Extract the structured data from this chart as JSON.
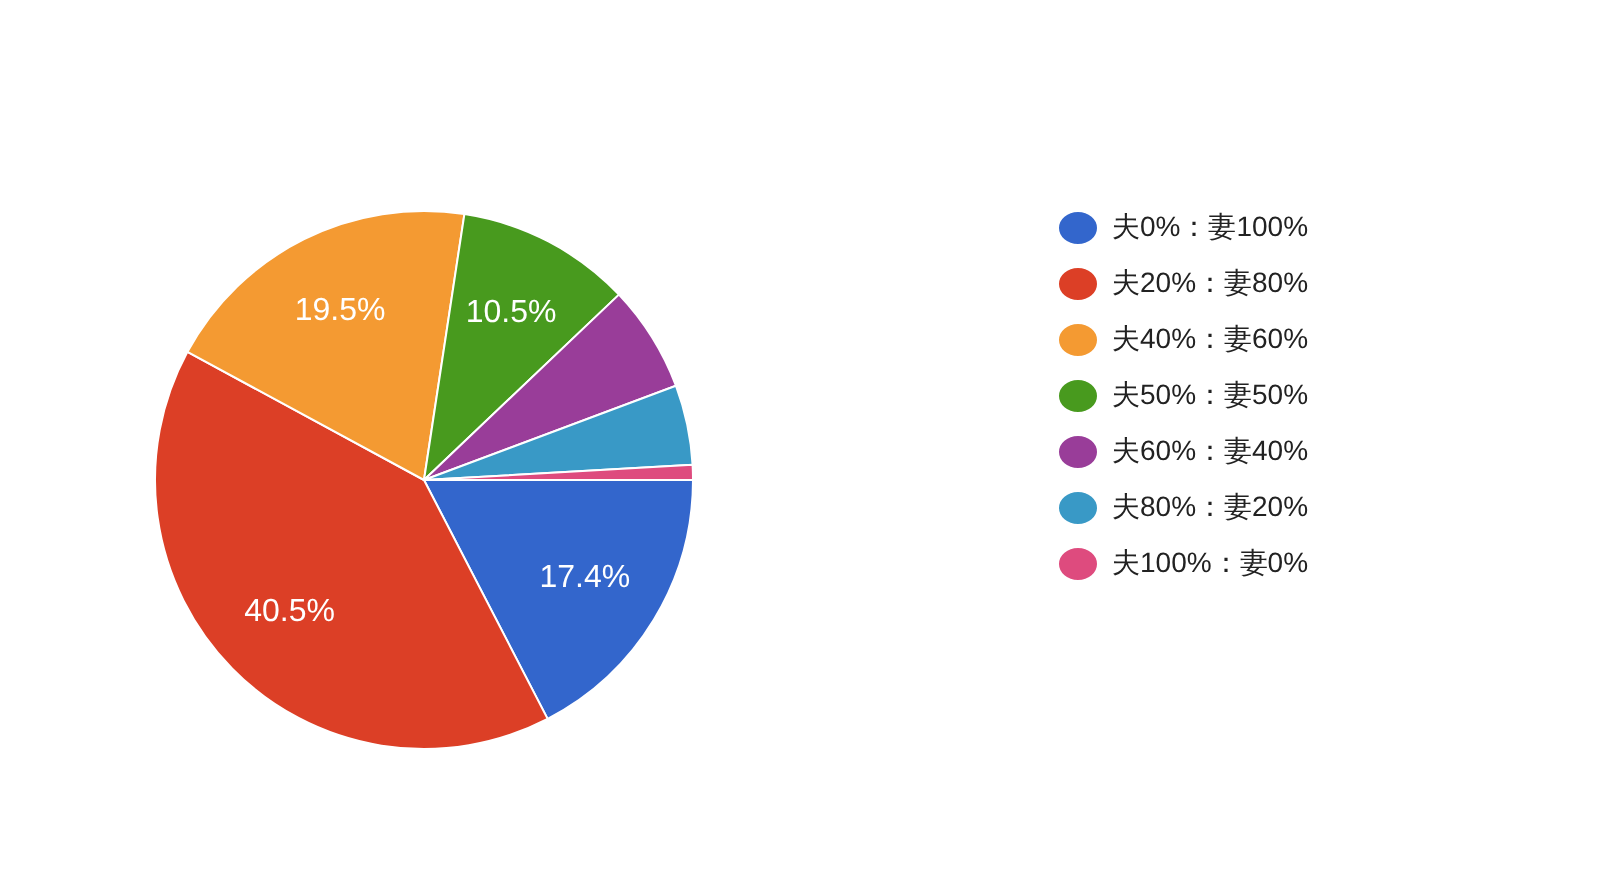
{
  "chart_data": {
    "type": "pie",
    "categories": [
      "夫0%：妻100%",
      "夫20%：妻80%",
      "夫40%：妻60%",
      "夫50%：妻50%",
      "夫60%：妻40%",
      "夫80%：妻20%",
      "夫100%：妻0%"
    ],
    "values": [
      17.4,
      40.5,
      19.5,
      10.5,
      6.4,
      4.8,
      0.9
    ],
    "colors": [
      "#3366cc",
      "#dc3f26",
      "#f49a32",
      "#489a1e",
      "#993d99",
      "#3999c6",
      "#de4b7e"
    ],
    "value_labels": [
      "17.4%",
      "40.5%",
      "19.5%",
      "10.5%",
      null,
      null,
      null
    ],
    "legend": "right"
  }
}
